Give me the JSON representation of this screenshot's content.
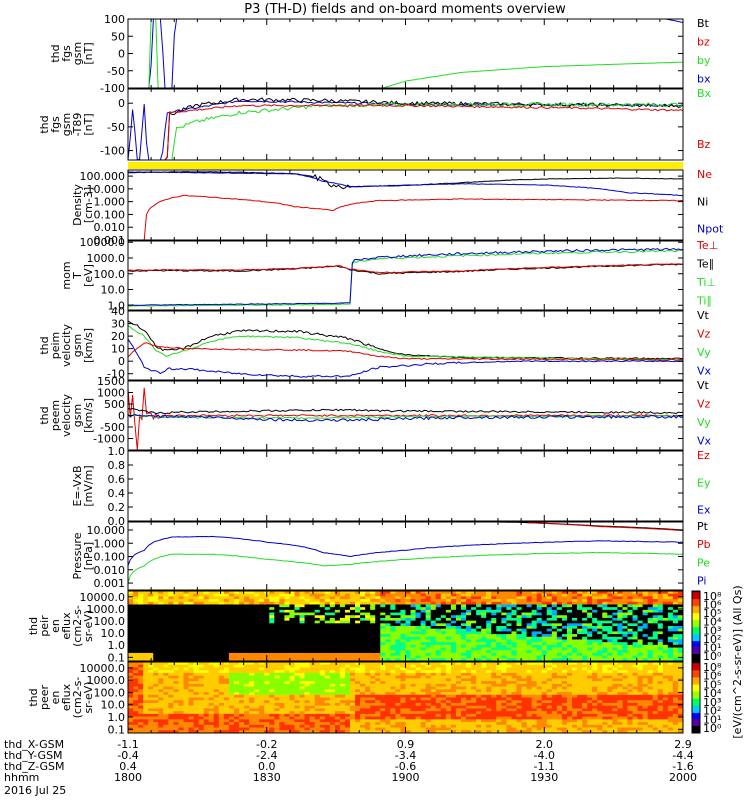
{
  "title": "P3 (TH-D) fields and on-board moments overview",
  "colors": {
    "black": "#000000",
    "red": "#e00000",
    "green": "#22dd22",
    "blue": "#0000cc",
    "yellow": "#ffee00"
  },
  "chart_data": {
    "type": "line",
    "x_labels": [
      "1800",
      "1830",
      "1900",
      "1930",
      "2000"
    ],
    "bottom_rows": [
      {
        "name": "thd_X-GSM",
        "values": [
          "-1.1",
          "-0.2",
          "0.9",
          "2.0",
          "2.9"
        ]
      },
      {
        "name": "thd_Y-GSM",
        "values": [
          "-0.4",
          "-2.4",
          "-3.4",
          "-4.0",
          "-4.4"
        ]
      },
      {
        "name": "thd_Z-GSM",
        "values": [
          "0.4",
          "0.0",
          "-0.6",
          "-1.1",
          "-1.6"
        ]
      },
      {
        "name": "hhmm",
        "values": [
          "1800",
          "1830",
          "1900",
          "1930",
          "2000"
        ]
      }
    ],
    "date_label": "2016 Jul 25",
    "panels": [
      {
        "id": "fgs-gsm",
        "ylabel": [
          "thd",
          "fgs",
          "gsm",
          "[nT]"
        ],
        "scale": "linear",
        "ylim": [
          -100,
          100
        ],
        "ticks": [
          "100",
          "50",
          "0",
          "-50",
          "-100"
        ],
        "legend": [
          {
            "text": "Bt",
            "color": "#000000"
          },
          {
            "text": "bz",
            "color": "#e00000"
          },
          {
            "text": "by",
            "color": "#22dd22"
          },
          {
            "text": "bx",
            "color": "#0000cc"
          }
        ]
      },
      {
        "id": "fgs-gsm-dev",
        "ylabel": [
          "thd",
          "fgs",
          "gsm",
          "-T89",
          "[nT]"
        ],
        "scale": "linear",
        "ylim": [
          -120,
          30
        ],
        "ticks": [
          "0",
          "-50",
          "-100"
        ],
        "legend": [
          {
            "text": "Bx",
            "color": "#22dd22"
          },
          {
            "text": "Bz",
            "color": "#e00000"
          }
        ]
      },
      {
        "id": "density",
        "ylabel": [
          "Density",
          "[cm-3]"
        ],
        "scale": "log",
        "ylim": [
          0.001,
          300
        ],
        "ticks": [
          "100.000",
          "10.000",
          "1.000",
          "0.100",
          "0.010",
          "0.001"
        ],
        "legend": [
          {
            "text": "Ne",
            "color": "#e00000"
          },
          {
            "text": "Ni",
            "color": "#000000"
          },
          {
            "text": "Npot",
            "color": "#0000cc"
          }
        ]
      },
      {
        "id": "temperature",
        "ylabel": [
          "mom",
          "T",
          "[eV]"
        ],
        "scale": "log",
        "ylim": [
          0.5,
          12000
        ],
        "ticks": [
          "10000.0",
          "1000.0",
          "100.0",
          "10.0",
          "1.0"
        ],
        "legend": [
          {
            "text": "Te⊥",
            "color": "#e00000"
          },
          {
            "text": "Te∥",
            "color": "#000000"
          },
          {
            "text": "Ti⊥",
            "color": "#22dd22"
          },
          {
            "text": "Ti∥",
            "color": "#22dd22"
          }
        ]
      },
      {
        "id": "peim-velocity",
        "ylabel": [
          "thd",
          "peim",
          "velocity",
          "gsm",
          "[km/s]"
        ],
        "scale": "linear",
        "ylim": [
          -15,
          40
        ],
        "ticks": [
          "40",
          "30",
          "20",
          "10",
          "0",
          "-10"
        ],
        "legend": [
          {
            "text": "Vt",
            "color": "#000000"
          },
          {
            "text": "Vz",
            "color": "#e00000"
          },
          {
            "text": "Vy",
            "color": "#22dd22"
          },
          {
            "text": "Vx",
            "color": "#0000cc"
          }
        ]
      },
      {
        "id": "peem-velocity",
        "ylabel": [
          "thd",
          "peem",
          "velocity",
          "gsm",
          "[km/s]"
        ],
        "scale": "linear",
        "ylim": [
          -1500,
          1500
        ],
        "ticks": [
          "1500",
          "1000",
          "500",
          "0",
          "-500",
          "-1000"
        ],
        "legend": [
          {
            "text": "Vt",
            "color": "#000000"
          },
          {
            "text": "Vz",
            "color": "#e00000"
          },
          {
            "text": "Vy",
            "color": "#22dd22"
          },
          {
            "text": "Vx",
            "color": "#0000cc"
          }
        ]
      },
      {
        "id": "efield",
        "ylabel": [
          "E=-VxB",
          "[mV/m]"
        ],
        "scale": "linear",
        "ylim": [
          0,
          1
        ],
        "ticks": [
          "1.0",
          "0.8",
          "0.6",
          "0.4",
          "0.2",
          "0.0"
        ],
        "legend": [
          {
            "text": "Ez",
            "color": "#e00000"
          },
          {
            "text": "Ey",
            "color": "#22dd22"
          },
          {
            "text": "Ex",
            "color": "#0000cc"
          }
        ]
      },
      {
        "id": "pressure",
        "ylabel": [
          "Pressure",
          "[nPa]"
        ],
        "scale": "log",
        "ylim": [
          0.0003,
          40
        ],
        "ticks": [
          "10.000",
          "1.000",
          "0.100",
          "0.010",
          "0.001"
        ],
        "legend": [
          {
            "text": "Pt",
            "color": "#000000"
          },
          {
            "text": "Pb",
            "color": "#e00000"
          },
          {
            "text": "Pe",
            "color": "#22dd22"
          },
          {
            "text": "Pi",
            "color": "#0000cc"
          }
        ]
      },
      {
        "id": "peir-spec",
        "ylabel": [
          "thd",
          "peir",
          "en",
          "eflux",
          "(cm2-s-",
          "sr-eV)"
        ],
        "scale": "log",
        "ylim": [
          0.05,
          30000
        ],
        "ticks": [
          "10000.0",
          "1000.0",
          "100.0",
          "10.0",
          "1.0",
          "0.1"
        ]
      },
      {
        "id": "peer-spec",
        "ylabel": [
          "thd",
          "peer",
          "en",
          "eflux",
          "(cm2-s-",
          "sr-eV)"
        ],
        "scale": "log",
        "ylim": [
          0.05,
          30000
        ],
        "ticks": [
          "10000.0",
          "1000.0",
          "100.0",
          "10.0",
          "1.0",
          "0.1"
        ]
      }
    ],
    "colorbar_upper": {
      "ticks": [
        "10⁸",
        "10⁶",
        "10⁵",
        "10⁴",
        "10³",
        "10²",
        "10¹",
        "10⁰"
      ]
    },
    "colorbar_lower": {
      "ticks": [
        "10⁸",
        "10⁶",
        "10⁵",
        "10⁴",
        "10³",
        "10²",
        "10¹",
        "10⁰"
      ]
    },
    "colorbar_label": "[eV/(cm^2-s-sr-eV)] (All Qs)"
  }
}
